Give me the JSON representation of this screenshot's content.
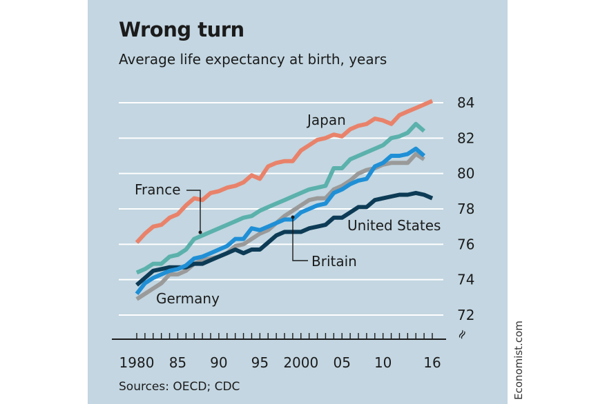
{
  "title": "Wrong turn",
  "subtitle": "Average life expectancy at birth, years",
  "source": "Sources: OECD; CDC",
  "credit": "Economist.com",
  "colors": {
    "background": "#c3d6e1",
    "grid": "#ffffff",
    "Japan": "#e9826a",
    "France": "#5bb1ac",
    "Britain": "#1f8fd6",
    "Germany": "#9a9a9a",
    "United States": "#0d3b56"
  },
  "chart_data": {
    "type": "line",
    "x_tick_labels": [
      "1980",
      "85",
      "90",
      "95",
      "2000",
      "05",
      "10",
      "16"
    ],
    "x_tick_values": [
      1980,
      1985,
      1990,
      1995,
      2000,
      2005,
      2010,
      2016
    ],
    "y_ticks": [
      72,
      74,
      76,
      78,
      80,
      82,
      84
    ],
    "ylim": [
      71.5,
      84.5
    ],
    "xlim": [
      1980,
      2016
    ],
    "grid": true,
    "y_axis_side": "right",
    "y_axis_break_symbol": "≈",
    "series": [
      {
        "name": "Japan",
        "x": [
          1980,
          1981,
          1982,
          1983,
          1984,
          1985,
          1986,
          1987,
          1988,
          1989,
          1990,
          1991,
          1992,
          1993,
          1994,
          1995,
          1996,
          1997,
          1998,
          1999,
          2000,
          2001,
          2002,
          2003,
          2004,
          2005,
          2006,
          2007,
          2008,
          2009,
          2010,
          2011,
          2012,
          2013,
          2014,
          2015,
          2016
        ],
        "values": [
          76.1,
          76.6,
          77.0,
          77.1,
          77.5,
          77.7,
          78.2,
          78.6,
          78.5,
          78.9,
          79.0,
          79.2,
          79.3,
          79.5,
          79.9,
          79.7,
          80.4,
          80.6,
          80.7,
          80.7,
          81.3,
          81.6,
          81.9,
          82.0,
          82.2,
          82.1,
          82.5,
          82.7,
          82.8,
          83.1,
          83.0,
          82.8,
          83.3,
          83.5,
          83.7,
          83.9,
          84.1
        ]
      },
      {
        "name": "France",
        "x": [
          1980,
          1981,
          1982,
          1983,
          1984,
          1985,
          1986,
          1987,
          1988,
          1989,
          1990,
          1991,
          1992,
          1993,
          1994,
          1995,
          1996,
          1997,
          1998,
          1999,
          2000,
          2001,
          2002,
          2003,
          2004,
          2005,
          2006,
          2007,
          2008,
          2009,
          2010,
          2011,
          2012,
          2013,
          2014,
          2015
        ],
        "values": [
          74.4,
          74.6,
          74.9,
          74.9,
          75.3,
          75.4,
          75.7,
          76.3,
          76.5,
          76.7,
          76.9,
          77.1,
          77.3,
          77.5,
          77.6,
          77.9,
          78.1,
          78.3,
          78.5,
          78.7,
          78.9,
          79.1,
          79.2,
          79.3,
          80.3,
          80.3,
          80.8,
          81.0,
          81.2,
          81.4,
          81.6,
          82.0,
          82.1,
          82.3,
          82.8,
          82.4
        ]
      },
      {
        "name": "Germany",
        "x": [
          1980,
          1981,
          1982,
          1983,
          1984,
          1985,
          1986,
          1987,
          1988,
          1989,
          1990,
          1991,
          1992,
          1993,
          1994,
          1995,
          1996,
          1997,
          1998,
          1999,
          2000,
          2001,
          2002,
          2003,
          2004,
          2005,
          2006,
          2007,
          2008,
          2009,
          2010,
          2011,
          2012,
          2013,
          2014,
          2015
        ],
        "values": [
          72.9,
          73.2,
          73.5,
          73.8,
          74.3,
          74.3,
          74.5,
          74.9,
          75.1,
          75.2,
          75.3,
          75.5,
          75.9,
          76.0,
          76.3,
          76.6,
          76.8,
          77.2,
          77.6,
          77.9,
          78.2,
          78.5,
          78.6,
          78.6,
          79.1,
          79.3,
          79.6,
          80.0,
          80.2,
          80.3,
          80.5,
          80.6,
          80.6,
          80.6,
          81.1,
          80.8
        ]
      },
      {
        "name": "Britain",
        "x": [
          1980,
          1981,
          1982,
          1983,
          1984,
          1985,
          1986,
          1987,
          1988,
          1989,
          1990,
          1991,
          1992,
          1993,
          1994,
          1995,
          1996,
          1997,
          1998,
          1999,
          2000,
          2001,
          2002,
          2003,
          2004,
          2005,
          2006,
          2007,
          2008,
          2009,
          2010,
          2011,
          2012,
          2013,
          2014,
          2015
        ],
        "values": [
          73.2,
          73.8,
          74.1,
          74.3,
          74.5,
          74.6,
          74.8,
          75.2,
          75.3,
          75.5,
          75.7,
          75.9,
          76.3,
          76.3,
          76.9,
          76.8,
          77.0,
          77.2,
          77.4,
          77.4,
          77.8,
          78.0,
          78.2,
          78.3,
          78.9,
          79.1,
          79.4,
          79.6,
          79.7,
          80.4,
          80.6,
          81.0,
          81.0,
          81.1,
          81.4,
          81.0
        ]
      },
      {
        "name": "United States",
        "x": [
          1980,
          1981,
          1982,
          1983,
          1984,
          1985,
          1986,
          1987,
          1988,
          1989,
          1990,
          1991,
          1992,
          1993,
          1994,
          1995,
          1996,
          1997,
          1998,
          1999,
          2000,
          2001,
          2002,
          2003,
          2004,
          2005,
          2006,
          2007,
          2008,
          2009,
          2010,
          2011,
          2012,
          2013,
          2014,
          2015,
          2016
        ],
        "values": [
          73.7,
          74.1,
          74.5,
          74.6,
          74.7,
          74.7,
          74.7,
          74.9,
          74.9,
          75.1,
          75.3,
          75.5,
          75.7,
          75.5,
          75.7,
          75.7,
          76.1,
          76.5,
          76.7,
          76.7,
          76.7,
          76.9,
          77.0,
          77.1,
          77.5,
          77.5,
          77.8,
          78.1,
          78.1,
          78.5,
          78.6,
          78.7,
          78.8,
          78.8,
          78.9,
          78.8,
          78.6
        ]
      }
    ],
    "annotations": [
      {
        "text": "Japan",
        "series": "Japan"
      },
      {
        "text": "France",
        "series": "France",
        "leader": true
      },
      {
        "text": "Britain",
        "series": "Britain",
        "leader": true
      },
      {
        "text": "United States",
        "series": "United States"
      },
      {
        "text": "Germany",
        "series": "Germany"
      }
    ]
  }
}
